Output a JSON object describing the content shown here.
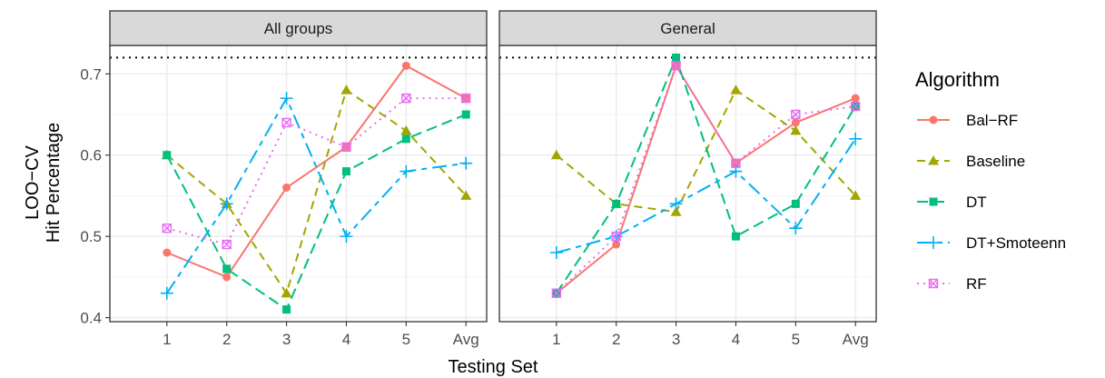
{
  "colors": {
    "Bal-RF": "#F8766D",
    "Baseline": "#A3A500",
    "DT": "#00BF7D",
    "DT+Smoteenn": "#00B0F6",
    "RF": "#E76BF3",
    "reference_line": "#000000"
  },
  "chart_data": {
    "type": "line",
    "facets": [
      "All groups",
      "General"
    ],
    "categories": [
      "1",
      "2",
      "3",
      "4",
      "5",
      "Avg"
    ],
    "xlabel": "Testing Set",
    "ylabel": [
      "LOO−CV",
      "Hit Percentage"
    ],
    "ylim": [
      0.395,
      0.735
    ],
    "yticks": [
      0.4,
      0.5,
      0.6,
      0.7
    ],
    "ytick_labels": [
      "0.4",
      "0.5",
      "0.6",
      "0.7"
    ],
    "reference_line_y": 0.72,
    "grid": true,
    "legend": {
      "title": "Algorithm",
      "position": "right",
      "entries": [
        "Bal−RF",
        "Baseline",
        "DT",
        "DT+Smoteenn",
        "RF"
      ]
    },
    "series": [
      {
        "name": "Bal−RF",
        "key": "Bal-RF",
        "linetype": "solid",
        "marker": "circle",
        "values": {
          "All groups": [
            0.48,
            0.45,
            0.56,
            0.61,
            0.71,
            0.67
          ],
          "General": [
            0.43,
            0.49,
            0.71,
            0.59,
            0.64,
            0.67
          ]
        }
      },
      {
        "name": "Baseline",
        "key": "Baseline",
        "linetype": "dashed",
        "marker": "triangle",
        "values": {
          "All groups": [
            0.6,
            0.54,
            0.43,
            0.68,
            0.63,
            0.55
          ],
          "General": [
            0.6,
            0.54,
            0.53,
            0.68,
            0.63,
            0.55
          ]
        }
      },
      {
        "name": "DT",
        "key": "DT",
        "linetype": "longdash",
        "marker": "square",
        "values": {
          "All groups": [
            0.6,
            0.46,
            0.41,
            0.58,
            0.62,
            0.65
          ],
          "General": [
            0.43,
            0.54,
            0.72,
            0.5,
            0.54,
            0.66
          ]
        }
      },
      {
        "name": "DT+Smoteenn",
        "key": "DT+Smoteenn",
        "linetype": "dashlong",
        "marker": "plus",
        "values": {
          "All groups": [
            0.43,
            0.54,
            0.67,
            0.5,
            0.58,
            0.59
          ],
          "General": [
            0.48,
            0.5,
            0.54,
            0.58,
            0.51,
            0.62
          ]
        }
      },
      {
        "name": "RF",
        "key": "RF",
        "linetype": "dotted",
        "marker": "square-x",
        "values": {
          "All groups": [
            0.51,
            0.49,
            0.64,
            0.61,
            0.67,
            0.67
          ],
          "General": [
            0.43,
            0.5,
            0.71,
            0.59,
            0.65,
            0.66
          ]
        }
      }
    ]
  }
}
